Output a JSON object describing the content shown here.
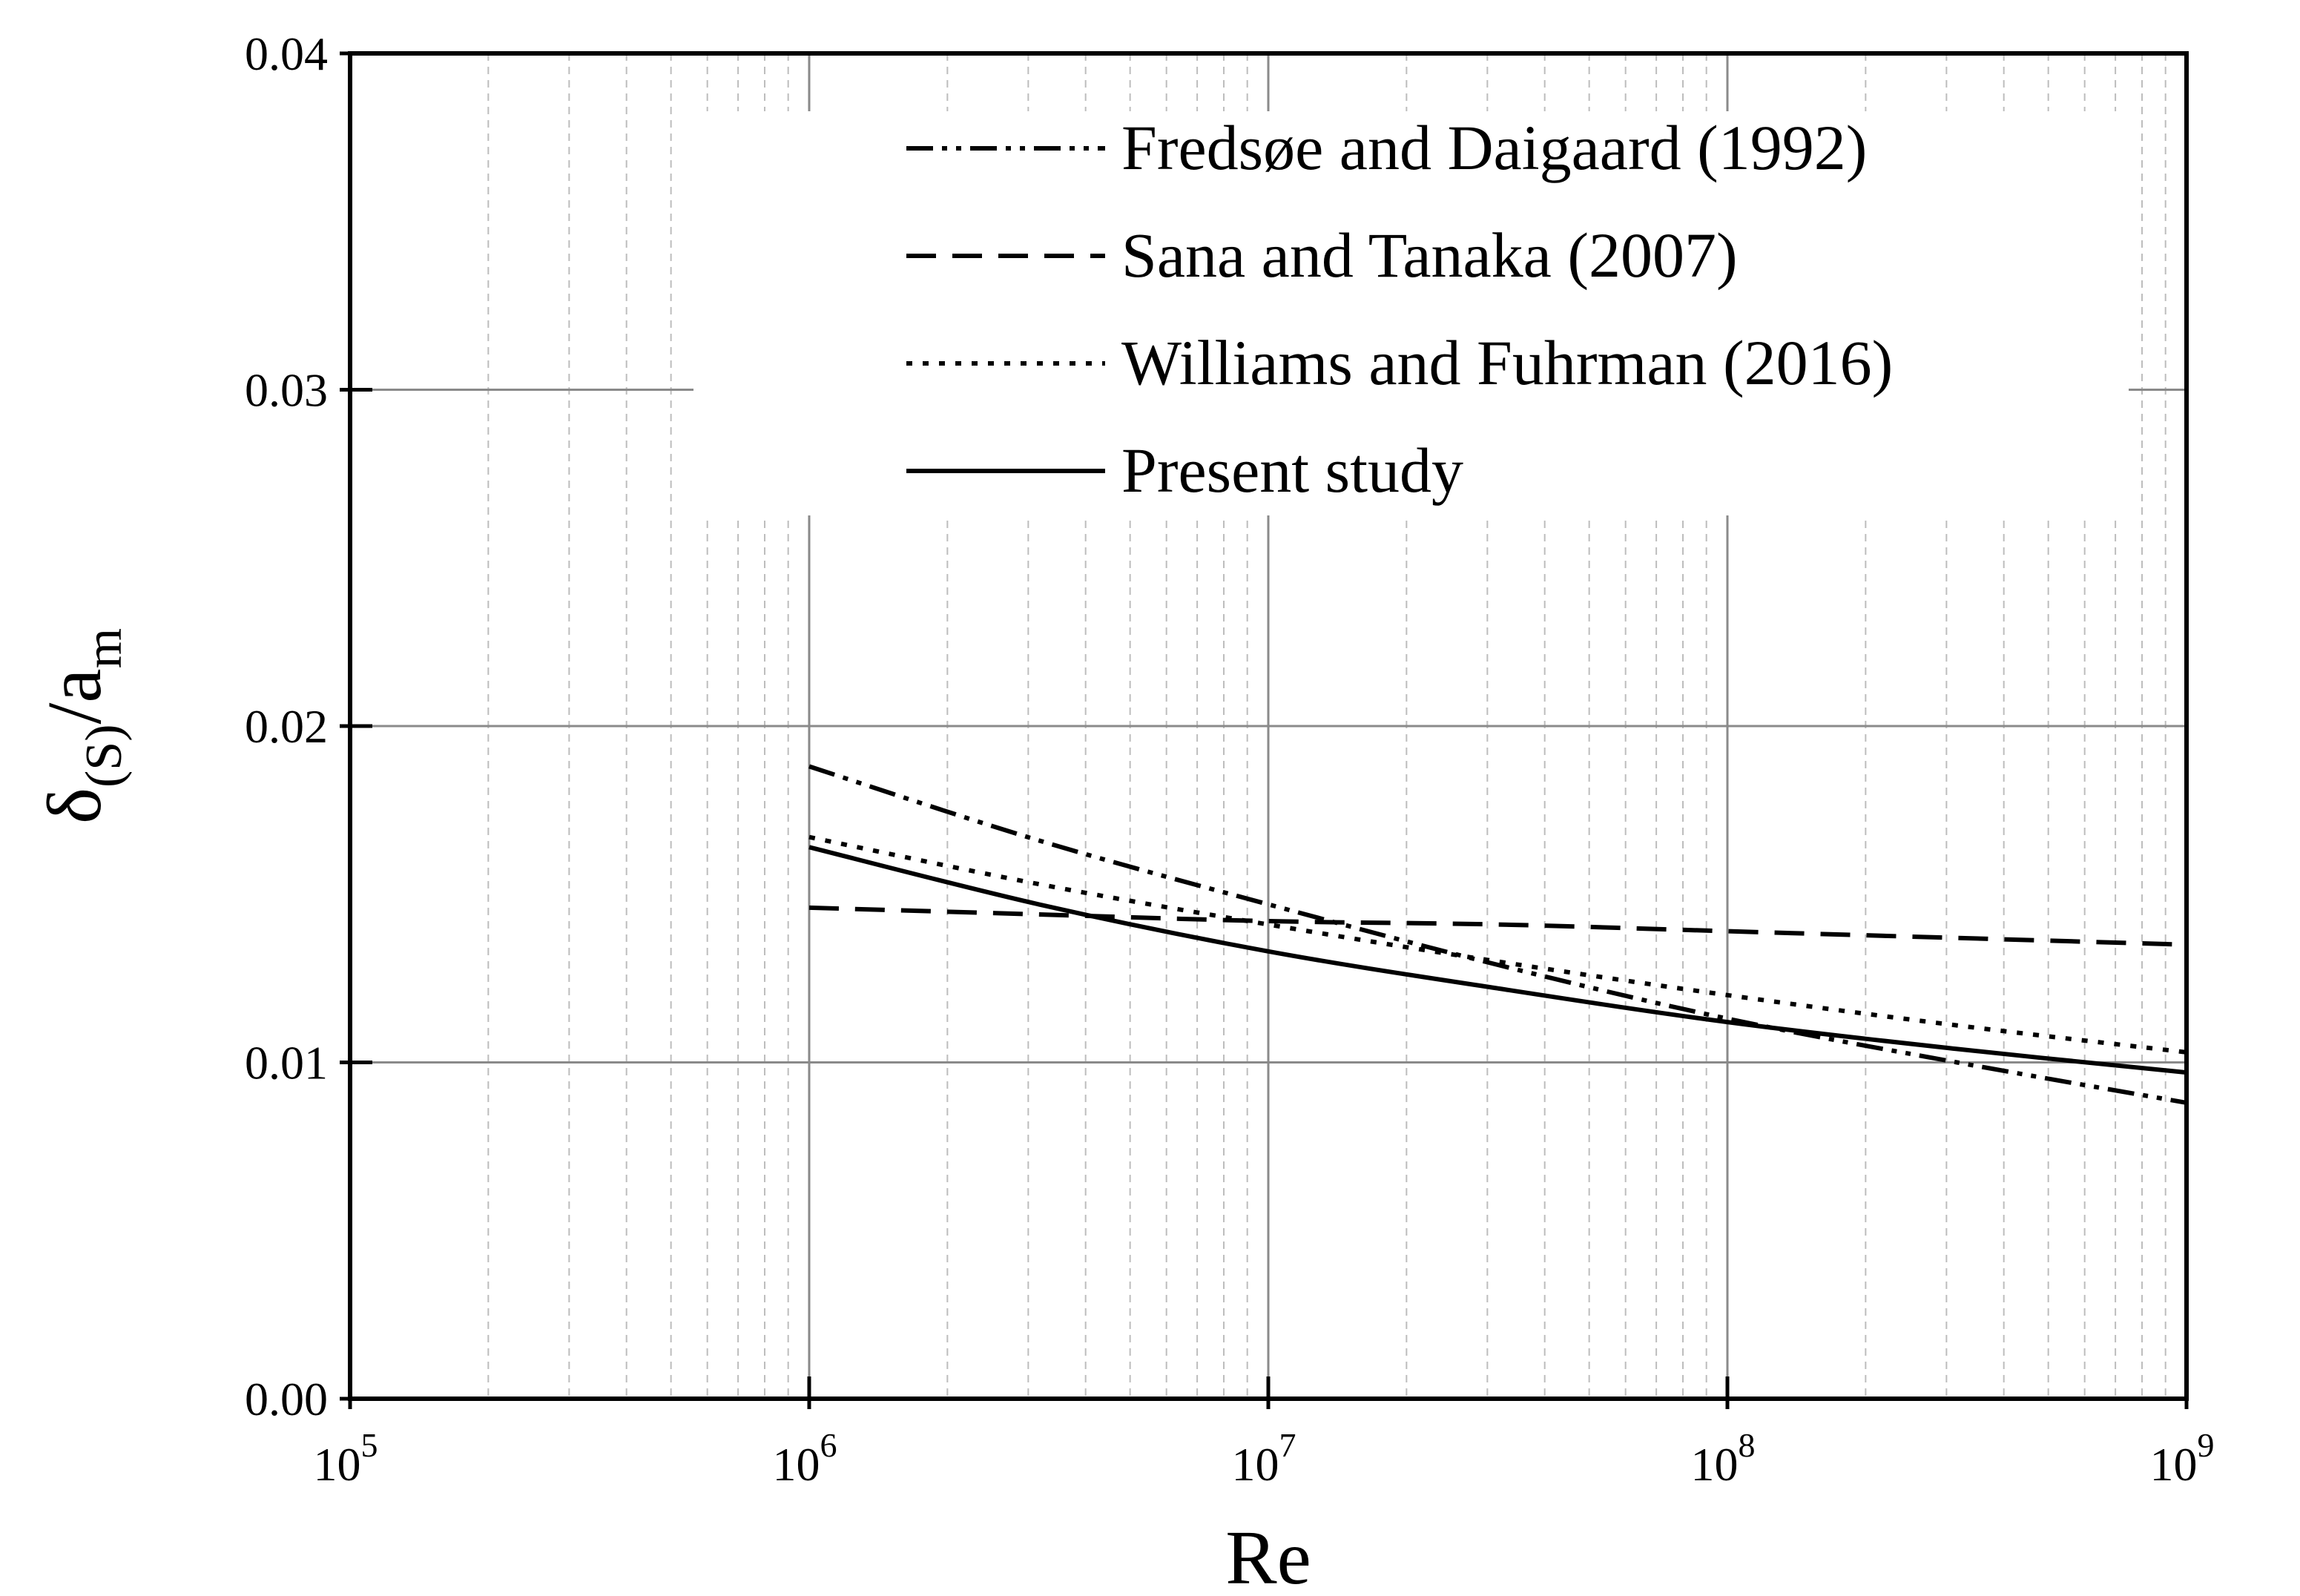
{
  "chart_data": {
    "type": "line",
    "title": "",
    "xlabel": "Re",
    "ylabel": {
      "main": "δ",
      "sub1": "(S)",
      "mid": "/a",
      "sub2": "m"
    },
    "xscale": "log",
    "xlim": [
      100000,
      1000000000
    ],
    "ylim": [
      0.0,
      0.04
    ],
    "x_ticks": [
      {
        "base": "10",
        "exp": "5",
        "value": 100000
      },
      {
        "base": "10",
        "exp": "6",
        "value": 1000000
      },
      {
        "base": "10",
        "exp": "7",
        "value": 10000000
      },
      {
        "base": "10",
        "exp": "8",
        "value": 100000000
      },
      {
        "base": "10",
        "exp": "9",
        "value": 1000000000
      }
    ],
    "y_ticks": [
      {
        "label": "0.00",
        "value": 0.0
      },
      {
        "label": "0.01",
        "value": 0.01
      },
      {
        "label": "0.02",
        "value": 0.02
      },
      {
        "label": "0.03",
        "value": 0.03
      },
      {
        "label": "0.04",
        "value": 0.04
      }
    ],
    "grid": true,
    "legend_position": "top-right",
    "series": [
      {
        "name": "Fredsøe and Daigaard (1992)",
        "style": "dash-dot-dot",
        "x": [
          1000000,
          3162278,
          10000000,
          31622777,
          100000000,
          316227766,
          1000000000
        ],
        "y": [
          0.0188,
          0.0166,
          0.0147,
          0.0129,
          0.0113,
          0.01,
          0.0088
        ]
      },
      {
        "name": "Sana and Tanaka (2007)",
        "style": "dashed",
        "x": [
          1000000,
          3162278,
          10000000,
          31622777,
          100000000,
          316227766,
          1000000000
        ],
        "y": [
          0.0146,
          0.0144,
          0.0142,
          0.0141,
          0.0139,
          0.0137,
          0.0135
        ]
      },
      {
        "name": "Williams and Fuhrman (2016)",
        "style": "dotted",
        "x": [
          1000000,
          3162278,
          10000000,
          31622777,
          100000000,
          316227766,
          1000000000
        ],
        "y": [
          0.0167,
          0.0153,
          0.0141,
          0.013,
          0.012,
          0.0111,
          0.0103
        ]
      },
      {
        "name": "Present study",
        "style": "solid",
        "x": [
          1000000,
          3162278,
          10000000,
          31622777,
          100000000,
          316227766,
          1000000000
        ],
        "y": [
          0.0164,
          0.0147,
          0.0133,
          0.0122,
          0.0112,
          0.0104,
          0.0097
        ]
      }
    ]
  }
}
